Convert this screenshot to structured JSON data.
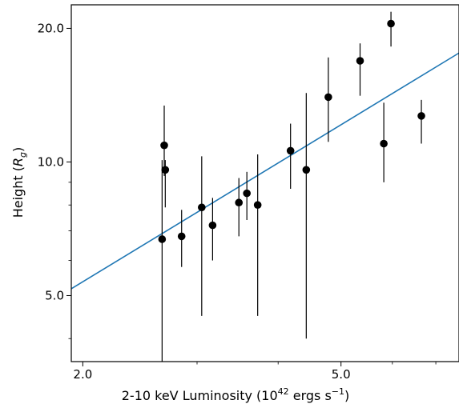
{
  "chart_data": {
    "type": "scatter",
    "title": "",
    "xlabel": {
      "text": "2-10 keV Luminosity (10",
      "sup": "42",
      "rest": " ergs s",
      "sup2": "−1",
      "end": ")"
    },
    "ylabel": {
      "text": "Height (",
      "italic": "R",
      "sub": "g",
      "end": ")"
    },
    "xscale": "log",
    "yscale": "log",
    "xlim": [
      1.92,
      7.6
    ],
    "ylim": [
      3.55,
      22.6
    ],
    "xticks": [
      {
        "value": 2.0,
        "label": "2.0"
      },
      {
        "value": 5.0,
        "label": "5.0"
      }
    ],
    "yticks": [
      {
        "value": 5.0,
        "label": "5.0"
      },
      {
        "value": 10.0,
        "label": "10.0"
      },
      {
        "value": 20.0,
        "label": "20.0"
      }
    ],
    "x_minor_ticks": [
      3,
      4,
      6,
      7
    ],
    "y_minor_ticks": [
      4,
      6,
      7,
      8,
      9
    ],
    "grid": false,
    "points": [
      {
        "x": 2.65,
        "y": 6.7,
        "ylo": 3.5,
        "yhi": 10.1
      },
      {
        "x": 2.67,
        "y": 10.9,
        "ylo": 9.3,
        "yhi": 13.4
      },
      {
        "x": 2.68,
        "y": 9.6,
        "ylo": 7.9,
        "yhi": 10.1
      },
      {
        "x": 2.84,
        "y": 6.8,
        "ylo": 5.8,
        "yhi": 7.8
      },
      {
        "x": 3.05,
        "y": 7.9,
        "ylo": 4.5,
        "yhi": 10.3
      },
      {
        "x": 3.17,
        "y": 7.2,
        "ylo": 6.0,
        "yhi": 8.3
      },
      {
        "x": 3.48,
        "y": 8.1,
        "ylo": 6.8,
        "yhi": 9.2
      },
      {
        "x": 3.58,
        "y": 8.5,
        "ylo": 7.4,
        "yhi": 9.5
      },
      {
        "x": 3.72,
        "y": 8.0,
        "ylo": 4.5,
        "yhi": 10.4
      },
      {
        "x": 4.18,
        "y": 10.6,
        "ylo": 8.7,
        "yhi": 12.2
      },
      {
        "x": 4.42,
        "y": 9.6,
        "ylo": 4.0,
        "yhi": 14.3
      },
      {
        "x": 4.78,
        "y": 14.0,
        "ylo": 11.1,
        "yhi": 17.2
      },
      {
        "x": 5.35,
        "y": 16.9,
        "ylo": 14.1,
        "yhi": 18.5
      },
      {
        "x": 5.82,
        "y": 11.0,
        "ylo": 9.0,
        "yhi": 13.6
      },
      {
        "x": 5.97,
        "y": 20.5,
        "ylo": 18.2,
        "yhi": 21.8
      },
      {
        "x": 6.65,
        "y": 12.7,
        "ylo": 11.0,
        "yhi": 13.8
      }
    ],
    "fit_line": {
      "color": "#1f77b4",
      "x": [
        1.92,
        7.6
      ],
      "y": [
        5.18,
        17.6
      ]
    },
    "marker_color": "#000000"
  }
}
